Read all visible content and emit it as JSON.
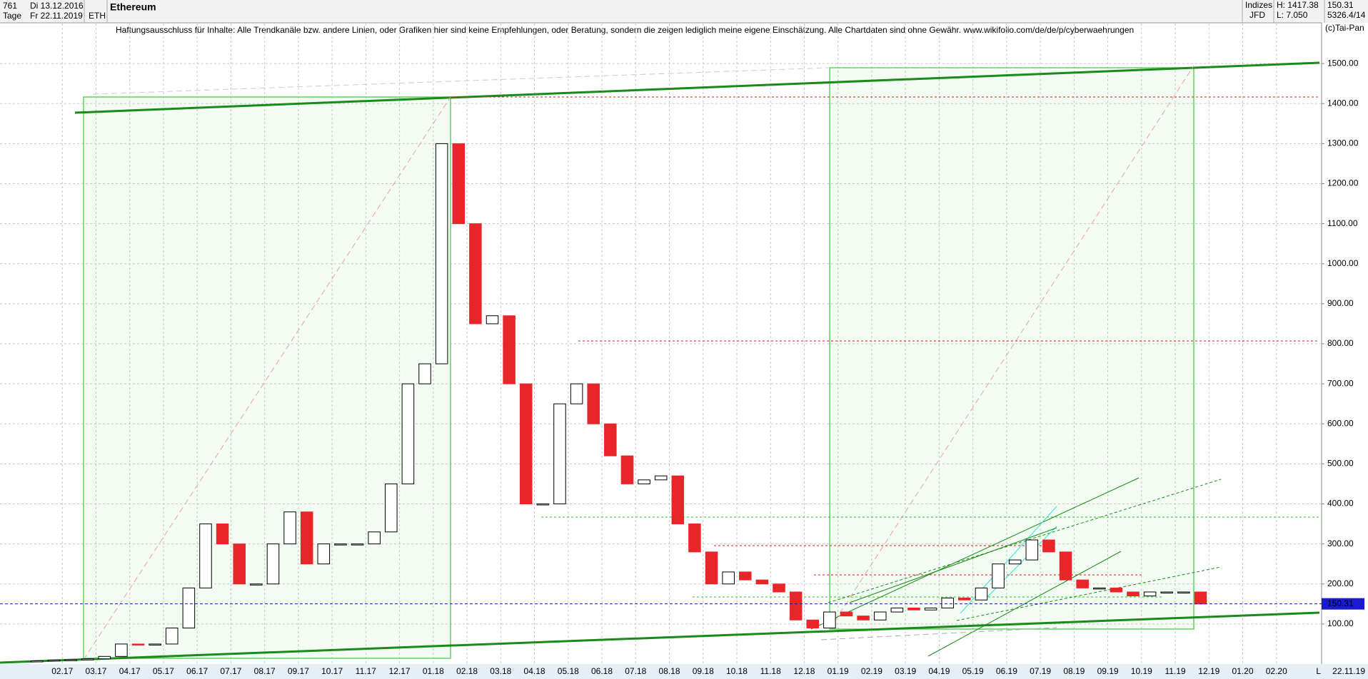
{
  "header": {
    "count": "761",
    "start_date": "Di 13.12.2016",
    "period": "Tage",
    "end_date": "Fr 22.11.2019",
    "symbol": "ETH",
    "name": "Ethereum",
    "market": "Indizes",
    "broker": "JFD",
    "high": "H: 1417.38",
    "low": "L: 7.050",
    "stats": "5326.4/14",
    "copyright": "(c)Tai-Pan",
    "disclaimer": "Haftungsausschluss für Inhalte: Alle Trendkanäle bzw. andere Linien, oder Grafiken hier sind keine Empfehlungen, oder Beratung, sondern die zeigen lediglich meine eigene Einschätzung. Alle Chartdaten sind ohne Gewähr.  www.wikifolio.com/de/de/p/cyberwaehrungen",
    "last_date": "22.11.19",
    "scale_mode": "L"
  },
  "chart_data": {
    "type": "candle-line",
    "categories": [
      null,
      null,
      "02.17",
      null,
      "03.17",
      null,
      "04.17",
      null,
      "05.17",
      null,
      "06.17",
      null,
      "07.17",
      null,
      "08.17",
      null,
      "09.17",
      null,
      "10.17",
      null,
      "11.17",
      null,
      "12.17",
      null,
      "01.18",
      null,
      "02.18",
      null,
      "03.18",
      null,
      "04.18",
      null,
      "05.18",
      null,
      "06.18",
      null,
      "07.18",
      null,
      "08.18",
      null,
      "09.18",
      null,
      "10.18",
      null,
      "11.18",
      null,
      "12.18",
      null,
      "01.19",
      null,
      "02.19",
      null,
      "03.19",
      null,
      "04.19",
      null,
      "05.19",
      null,
      "06.19",
      null,
      "07.19",
      null,
      "08.19",
      null,
      "09.19",
      null,
      "10.19",
      null,
      "11.19",
      null,
      "12.19",
      null,
      "01.20",
      null,
      "02.20",
      null
    ],
    "values": [
      8,
      10,
      11,
      13,
      19,
      50,
      48,
      50,
      90,
      190,
      350,
      300,
      200,
      200,
      300,
      380,
      250,
      300,
      300,
      300,
      330,
      450,
      700,
      750,
      1300,
      1100,
      850,
      870,
      700,
      400,
      400,
      650,
      700,
      600,
      520,
      450,
      460,
      470,
      350,
      280,
      200,
      230,
      210,
      200,
      180,
      110,
      90,
      130,
      120,
      110,
      130,
      140,
      135,
      140,
      165,
      160,
      190,
      250,
      260,
      310,
      280,
      210,
      190,
      190,
      180,
      170,
      180,
      180,
      180,
      150,
      null,
      null,
      null,
      null,
      null,
      null
    ],
    "up_color": "#000000",
    "down_color": "#e8262a",
    "current_price": 150.31,
    "ylim": [
      0,
      1600
    ],
    "yticks": [
      {
        "value": 100,
        "label": "100.00"
      },
      {
        "value": 200,
        "label": "200.00"
      },
      {
        "value": 300,
        "label": "300.00"
      },
      {
        "value": 400,
        "label": "400.00"
      },
      {
        "value": 500,
        "label": "500.00"
      },
      {
        "value": 600,
        "label": "600.00"
      },
      {
        "value": 700,
        "label": "700.00"
      },
      {
        "value": 800,
        "label": "800.00"
      },
      {
        "value": 900,
        "label": "900.00"
      },
      {
        "value": 1000,
        "label": "1000.00"
      },
      {
        "value": 1100,
        "label": "1100.00"
      },
      {
        "value": 1200,
        "label": "1200.00"
      },
      {
        "value": 1300,
        "label": "1300.00"
      },
      {
        "value": 1400,
        "label": "1400.00"
      },
      {
        "value": 1500,
        "label": "1500.00"
      }
    ],
    "grid": true
  }
}
